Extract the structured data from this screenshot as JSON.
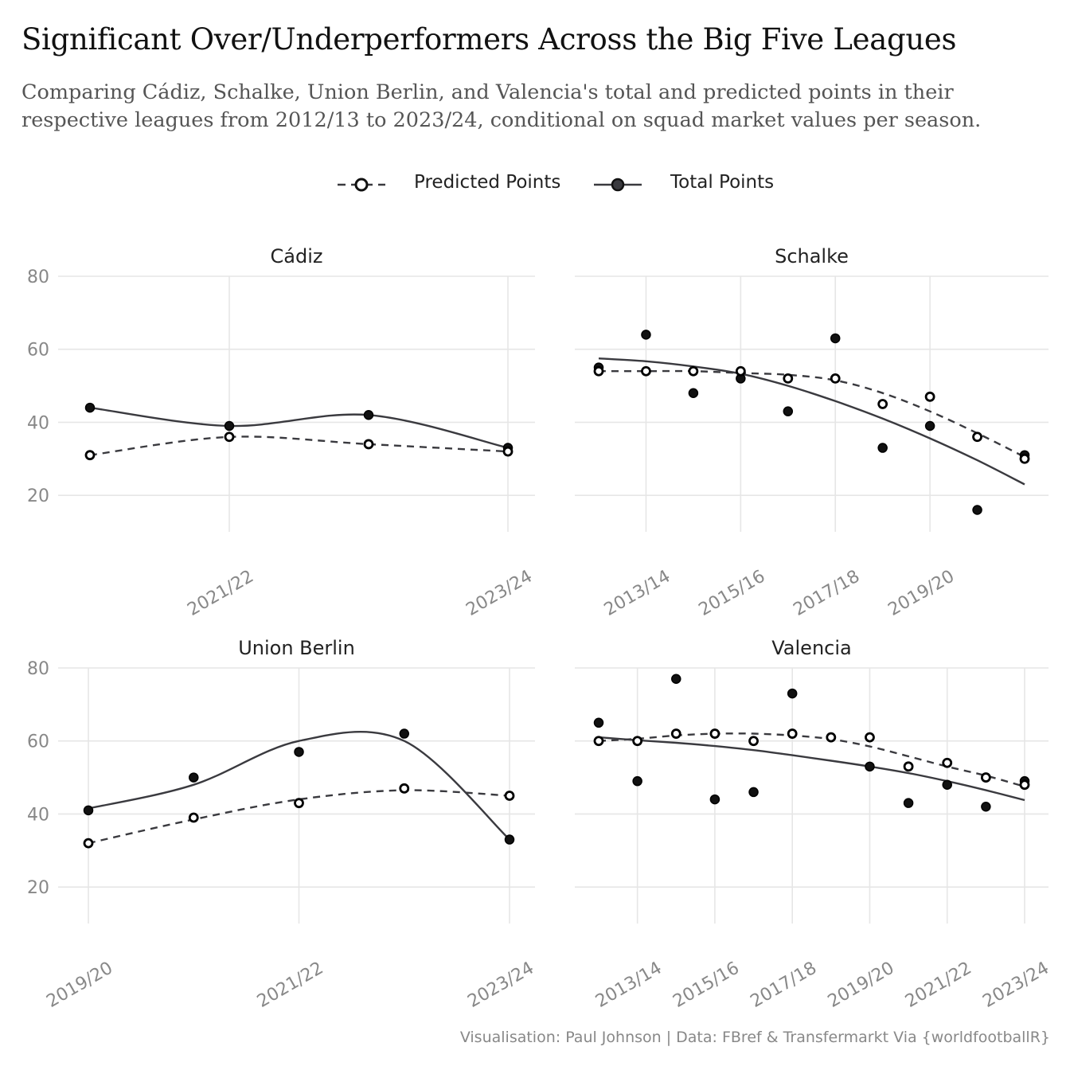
{
  "title": "Significant Over/Underperformers Across the Big Five Leagues",
  "subtitle_line1": "Comparing Cádiz, Schalke, Union Berlin, and Valencia's total and predicted points in their",
  "subtitle_line2": "respective leagues from 2012/13 to 2023/24, conditional on squad market values per season.",
  "caption": "Visualisation: Paul Johnson | Data: FBref & Transfermarkt Via {worldfootballR}",
  "legend": {
    "predicted_label": "Predicted Points",
    "total_label": "Total Points"
  },
  "colors": {
    "line": "#3a3a3f",
    "point_fill_total": "#111111",
    "point_fill_predicted": "#ffffff",
    "grid": "#e6e6e6",
    "tick_text": "#888888",
    "strip_text": "#222222"
  },
  "chart_data": [
    {
      "type": "line",
      "panel": "Cádiz",
      "title": "Cádiz",
      "x": [
        "2020/21",
        "2021/22",
        "2022/23",
        "2023/24"
      ],
      "x_tick_labels": [
        "2021/22",
        "2023/24"
      ],
      "ylim": [
        20,
        80
      ],
      "y_ticks": [
        20,
        40,
        60,
        80
      ],
      "series": [
        {
          "name": "Total Points",
          "values": [
            44,
            39,
            42,
            33
          ],
          "trend": [
            44,
            39,
            42,
            33
          ]
        },
        {
          "name": "Predicted Points",
          "values": [
            31,
            36,
            34,
            32
          ],
          "trend": [
            31,
            36,
            34,
            32
          ]
        }
      ]
    },
    {
      "type": "line",
      "panel": "Schalke",
      "title": "Schalke",
      "x": [
        "2012/13",
        "2013/14",
        "2014/15",
        "2015/16",
        "2016/17",
        "2017/18",
        "2018/19",
        "2019/20",
        "2020/21",
        "2021/22"
      ],
      "x_tick_labels": [
        "2013/14",
        "2015/16",
        "2017/18",
        "2019/20"
      ],
      "ylim": [
        20,
        80
      ],
      "y_ticks": [
        20,
        40,
        60,
        80
      ],
      "series": [
        {
          "name": "Total Points",
          "values": [
            55,
            64,
            48,
            52,
            43,
            63,
            33,
            39,
            16,
            31
          ],
          "trend": [
            57.5,
            56.7,
            55.3,
            53.3,
            50.0,
            45.8,
            41.0,
            35.6,
            29.6,
            23.0
          ]
        },
        {
          "name": "Predicted Points",
          "values": [
            54,
            54,
            54,
            54,
            52,
            52,
            45,
            47,
            36,
            30
          ],
          "trend": [
            54,
            54,
            54,
            53.5,
            53,
            51.5,
            48,
            43,
            37,
            30.5
          ]
        }
      ]
    },
    {
      "type": "line",
      "panel": "Union Berlin",
      "title": "Union Berlin",
      "x": [
        "2019/20",
        "2020/21",
        "2021/22",
        "2022/23",
        "2023/24"
      ],
      "x_tick_labels": [
        "2019/20",
        "2021/22",
        "2023/24"
      ],
      "ylim": [
        20,
        80
      ],
      "y_ticks": [
        20,
        40,
        60,
        80
      ],
      "series": [
        {
          "name": "Total Points",
          "values": [
            41,
            50,
            57,
            62,
            33
          ],
          "trend": [
            41.5,
            48,
            60,
            60,
            33
          ]
        },
        {
          "name": "Predicted Points",
          "values": [
            32,
            39,
            43,
            47,
            45
          ],
          "trend": [
            32,
            38.5,
            44,
            46.5,
            45
          ]
        }
      ]
    },
    {
      "type": "line",
      "panel": "Valencia",
      "title": "Valencia",
      "x": [
        "2012/13",
        "2013/14",
        "2014/15",
        "2015/16",
        "2016/17",
        "2017/18",
        "2018/19",
        "2019/20",
        "2020/21",
        "2021/22",
        "2022/23",
        "2023/24"
      ],
      "x_tick_labels": [
        "2013/14",
        "2015/16",
        "2017/18",
        "2019/20",
        "2021/22",
        "2023/24"
      ],
      "ylim": [
        20,
        80
      ],
      "y_ticks": [
        20,
        40,
        60,
        80
      ],
      "series": [
        {
          "name": "Total Points",
          "values": [
            65,
            49,
            77,
            44,
            46,
            73,
            61,
            53,
            43,
            48,
            42,
            49
          ],
          "trend": [
            61,
            60.2,
            59.5,
            58.6,
            57.5,
            56.1,
            54.6,
            53.0,
            51.2,
            49.0,
            46.5,
            43.8
          ]
        },
        {
          "name": "Predicted Points",
          "values": [
            60,
            60,
            62,
            62,
            60,
            62,
            61,
            61,
            53,
            54,
            50,
            48
          ],
          "trend": [
            60,
            60.6,
            61.5,
            62,
            62,
            61.5,
            60.5,
            58.5,
            55.8,
            53,
            50.5,
            47.5
          ]
        }
      ]
    }
  ]
}
